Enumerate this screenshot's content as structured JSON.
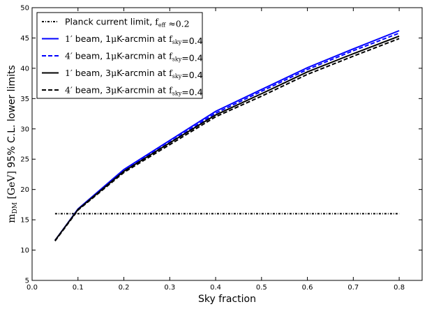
{
  "chart_data": {
    "type": "line",
    "xlabel": "Sky fraction",
    "ylabel": "mDM [GeV] 95% C.L. lower limits",
    "xlim": [
      0.0,
      0.85
    ],
    "ylim": [
      5,
      50
    ],
    "xticks": [
      "0.0",
      "0.1",
      "0.2",
      "0.3",
      "0.4",
      "0.5",
      "0.6",
      "0.7",
      "0.8"
    ],
    "yticks": [
      "5",
      "10",
      "15",
      "20",
      "25",
      "30",
      "35",
      "40",
      "45",
      "50"
    ],
    "grid": false,
    "legend_position": "top-left",
    "x": [
      0.05,
      0.1,
      0.2,
      0.3,
      0.4,
      0.5,
      0.6,
      0.7,
      0.8
    ],
    "series": [
      {
        "name": "Planck current limit, f_eff ≈ 0.2",
        "color": "#000000",
        "style": "dashdot",
        "x": [
          0.05,
          0.8
        ],
        "values": [
          16.0,
          16.0
        ]
      },
      {
        "name": "1′ beam, 1μK-arcmin at f_sky=0.4",
        "color": "#0000ff",
        "style": "solid",
        "values": [
          11.6,
          16.8,
          23.3,
          28.1,
          32.9,
          36.5,
          40.1,
          43.2,
          46.2
        ]
      },
      {
        "name": "4′ beam, 1μK-arcmin at f_sky=0.4",
        "color": "#0000ff",
        "style": "dashed",
        "values": [
          11.6,
          16.7,
          23.1,
          27.8,
          32.6,
          36.2,
          39.8,
          42.9,
          45.8
        ]
      },
      {
        "name": "1′ beam, 3μK-arcmin at f_sky=0.4",
        "color": "#000000",
        "style": "solid",
        "values": [
          11.6,
          16.7,
          23.0,
          27.7,
          32.3,
          35.8,
          39.4,
          42.4,
          45.3
        ]
      },
      {
        "name": "4′ beam, 3μK-arcmin at f_sky=0.4",
        "color": "#000000",
        "style": "dashed",
        "values": [
          11.5,
          16.6,
          22.8,
          27.4,
          32.0,
          35.4,
          39.0,
          42.0,
          44.9
        ]
      }
    ]
  }
}
